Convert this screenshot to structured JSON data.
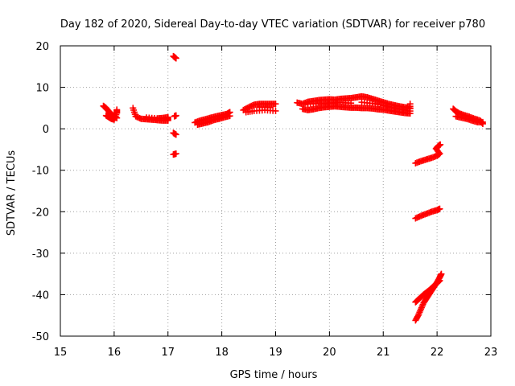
{
  "chart_data": {
    "type": "scatter",
    "title": "Day 182 of 2020, Sidereal Day-to-day VTEC variation (SDTVAR) for receiver p780",
    "xlabel": "GPS time / hours",
    "ylabel": "SDTVAR / TECUs",
    "xlim": [
      15,
      23
    ],
    "ylim": [
      -50,
      20
    ],
    "x_ticks": [
      "15",
      "16",
      "17",
      "18",
      "19",
      "20",
      "21",
      "22",
      "23"
    ],
    "y_ticks": [
      "20",
      "10",
      "0",
      "-10",
      "-20",
      "-30",
      "-40",
      "-50"
    ],
    "x_tick_values": [
      15,
      16,
      17,
      18,
      19,
      20,
      21,
      22,
      23
    ],
    "y_tick_values": [
      20,
      10,
      0,
      -10,
      -20,
      -30,
      -40,
      -50
    ],
    "grid": true,
    "marker": "+",
    "marker_color": "#ff0000",
    "series": [
      {
        "segments": [
          {
            "points": [
              [
                15.8,
                5.5
              ],
              [
                15.85,
                5.0
              ],
              [
                15.9,
                4.2
              ],
              [
                15.95,
                3.5
              ],
              [
                16.0,
                3.0
              ],
              [
                16.05,
                2.6
              ]
            ]
          },
          {
            "points": [
              [
                15.85,
                3.2
              ],
              [
                15.9,
                2.8
              ],
              [
                15.95,
                2.4
              ],
              [
                16.0,
                2.2
              ],
              [
                16.05,
                3.8
              ],
              [
                16.05,
                4.6
              ]
            ]
          },
          {
            "points": [
              [
                16.35,
                5.0
              ],
              [
                16.4,
                3.0
              ],
              [
                16.5,
                2.4
              ],
              [
                16.6,
                2.3
              ],
              [
                16.7,
                2.2
              ],
              [
                16.8,
                2.1
              ],
              [
                16.9,
                2.0
              ],
              [
                17.0,
                2.0
              ],
              [
                17.0,
                2.8
              ],
              [
                16.9,
                2.6
              ],
              [
                16.8,
                2.5
              ],
              [
                16.6,
                2.7
              ]
            ]
          },
          {
            "points": [
              [
                17.1,
                17.5
              ],
              [
                17.15,
                17.0
              ],
              [
                17.12,
                3.0
              ],
              [
                17.15,
                3.2
              ],
              [
                17.1,
                -1.0
              ],
              [
                17.15,
                -1.4
              ],
              [
                17.1,
                -6.2
              ],
              [
                17.15,
                -6.0
              ]
            ]
          },
          {
            "points": [
              [
                17.5,
                1.5
              ],
              [
                17.6,
                2.0
              ],
              [
                17.7,
                2.3
              ],
              [
                17.8,
                2.7
              ],
              [
                17.9,
                3.0
              ],
              [
                18.0,
                3.3
              ],
              [
                18.1,
                3.6
              ],
              [
                18.15,
                4.0
              ],
              [
                17.55,
                1.0
              ],
              [
                17.65,
                1.3
              ],
              [
                17.75,
                1.6
              ],
              [
                17.85,
                2.1
              ],
              [
                17.95,
                2.4
              ],
              [
                18.05,
                2.8
              ],
              [
                18.15,
                3.1
              ]
            ]
          },
          {
            "points": [
              [
                18.4,
                4.5
              ],
              [
                18.5,
                5.2
              ],
              [
                18.6,
                5.8
              ],
              [
                18.7,
                6.0
              ],
              [
                18.8,
                6.0
              ],
              [
                18.9,
                6.0
              ],
              [
                19.0,
                6.0
              ],
              [
                18.45,
                4.0
              ],
              [
                18.6,
                4.3
              ],
              [
                18.8,
                4.5
              ],
              [
                19.0,
                4.3
              ],
              [
                18.7,
                5.2
              ],
              [
                18.9,
                5.1
              ]
            ]
          },
          {
            "points": [
              [
                19.4,
                6.3
              ],
              [
                19.5,
                6.0
              ],
              [
                19.6,
                6.5
              ],
              [
                19.7,
                6.7
              ],
              [
                19.8,
                6.9
              ],
              [
                19.9,
                7.0
              ],
              [
                20.0,
                7.1
              ],
              [
                20.1,
                7.0
              ],
              [
                20.2,
                7.2
              ],
              [
                20.3,
                7.3
              ],
              [
                20.4,
                7.4
              ],
              [
                20.5,
                7.6
              ],
              [
                20.6,
                7.8
              ],
              [
                20.7,
                7.6
              ],
              [
                20.8,
                7.2
              ],
              [
                20.9,
                6.8
              ],
              [
                21.0,
                6.4
              ],
              [
                21.1,
                6.0
              ],
              [
                21.2,
                5.7
              ],
              [
                21.3,
                5.4
              ],
              [
                21.4,
                5.2
              ],
              [
                21.5,
                5.0
              ]
            ]
          },
          {
            "points": [
              [
                19.5,
                4.8
              ],
              [
                19.6,
                4.5
              ],
              [
                19.7,
                4.7
              ],
              [
                19.8,
                5.0
              ],
              [
                19.9,
                5.2
              ],
              [
                20.0,
                5.3
              ],
              [
                20.1,
                5.4
              ],
              [
                20.2,
                5.3
              ],
              [
                20.3,
                5.2
              ],
              [
                20.4,
                5.1
              ],
              [
                20.5,
                5.1
              ],
              [
                20.6,
                5.0
              ],
              [
                20.7,
                5.0
              ],
              [
                20.8,
                4.9
              ],
              [
                20.9,
                4.7
              ],
              [
                21.0,
                4.6
              ],
              [
                21.1,
                4.4
              ],
              [
                21.2,
                4.2
              ],
              [
                21.3,
                4.0
              ],
              [
                21.4,
                3.8
              ],
              [
                21.5,
                3.7
              ],
              [
                21.5,
                6.0
              ]
            ]
          },
          {
            "points": [
              [
                19.6,
                6.0
              ],
              [
                19.8,
                6.0
              ],
              [
                20.0,
                6.2
              ],
              [
                20.2,
                6.3
              ],
              [
                20.4,
                6.2
              ],
              [
                20.6,
                6.4
              ],
              [
                20.8,
                6.1
              ],
              [
                21.0,
                5.6
              ],
              [
                21.2,
                5.0
              ],
              [
                21.4,
                4.6
              ]
            ]
          },
          {
            "points": [
              [
                21.6,
                -8.3
              ],
              [
                21.7,
                -7.8
              ],
              [
                21.8,
                -7.4
              ],
              [
                21.9,
                -7.0
              ],
              [
                22.0,
                -6.5
              ],
              [
                22.05,
                -6.0
              ],
              [
                21.98,
                -4.8
              ],
              [
                22.02,
                -4.2
              ],
              [
                22.06,
                -3.8
              ]
            ]
          },
          {
            "points": [
              [
                21.6,
                -21.6
              ],
              [
                21.7,
                -21.0
              ],
              [
                21.8,
                -20.5
              ],
              [
                21.9,
                -20.0
              ],
              [
                22.0,
                -19.6
              ],
              [
                22.05,
                -19.3
              ]
            ]
          },
          {
            "points": [
              [
                21.6,
                -46.2
              ],
              [
                21.65,
                -45.0
              ],
              [
                21.7,
                -43.5
              ],
              [
                21.75,
                -42.0
              ],
              [
                21.8,
                -41.0
              ],
              [
                21.85,
                -40.0
              ],
              [
                21.9,
                -39.0
              ],
              [
                21.95,
                -38.0
              ],
              [
                22.0,
                -37.0
              ],
              [
                22.05,
                -35.8
              ],
              [
                22.08,
                -35.0
              ]
            ]
          },
          {
            "points": [
              [
                21.6,
                -41.8
              ],
              [
                21.65,
                -41.2
              ],
              [
                21.7,
                -40.6
              ],
              [
                21.75,
                -40.0
              ],
              [
                21.8,
                -39.5
              ],
              [
                21.85,
                -39.0
              ],
              [
                21.9,
                -38.4
              ],
              [
                21.95,
                -37.8
              ],
              [
                22.0,
                -37.2
              ],
              [
                22.05,
                -36.6
              ]
            ]
          },
          {
            "points": [
              [
                22.3,
                4.8
              ],
              [
                22.35,
                4.2
              ],
              [
                22.4,
                3.8
              ],
              [
                22.5,
                3.3
              ],
              [
                22.6,
                2.9
              ],
              [
                22.7,
                2.4
              ],
              [
                22.8,
                2.0
              ],
              [
                22.85,
                1.2
              ],
              [
                22.35,
                3.0
              ],
              [
                22.45,
                2.7
              ],
              [
                22.55,
                2.4
              ],
              [
                22.65,
                2.0
              ],
              [
                22.75,
                1.6
              ],
              [
                22.85,
                1.6
              ]
            ]
          }
        ]
      }
    ]
  }
}
